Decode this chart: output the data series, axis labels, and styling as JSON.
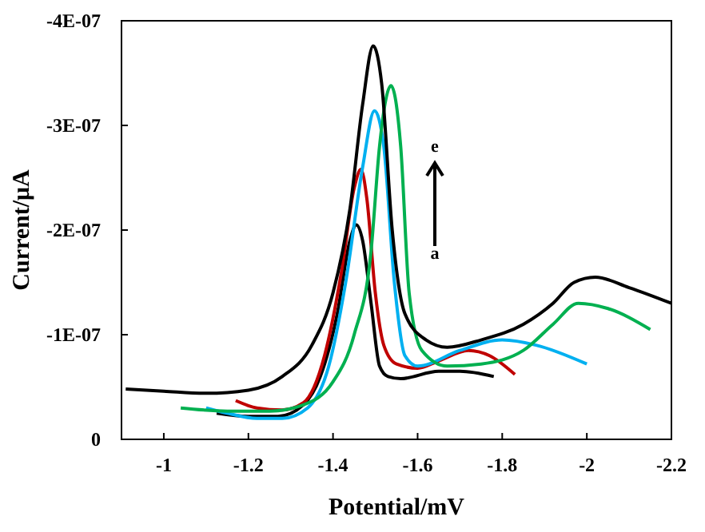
{
  "chart_data": {
    "type": "line",
    "xlabel": "Potential/mV",
    "ylabel": "Current/μA",
    "xlim": [
      -0.9,
      -2.2
    ],
    "xticks": [
      -1,
      -1.2,
      -1.4,
      -1.6,
      -1.8,
      -2,
      -2.2
    ],
    "ylim": [
      0,
      -4e-07
    ],
    "yticks": [
      0,
      {
        "value": -1e-07,
        "label": "-1E-07"
      },
      {
        "value": -2e-07,
        "label": "-2E-07"
      },
      {
        "value": -3e-07,
        "label": "-3E-07"
      },
      {
        "value": -4e-07,
        "label": "-4E-07"
      }
    ],
    "grid": false,
    "marker": "none",
    "line_style": "solid",
    "annotations": [
      "e",
      "a"
    ],
    "series": [
      {
        "color": "#000000",
        "x": [
          -1.125,
          -1.2,
          -1.27,
          -1.33,
          -1.37,
          -1.41,
          -1.44,
          -1.455,
          -1.47,
          -1.49,
          -1.51,
          -1.53,
          -1.56,
          -1.65,
          -1.7,
          -1.78
        ],
        "values": [
          -2.5e-08,
          -2.2e-08,
          -2.2e-08,
          -3.3e-08,
          -6e-08,
          -1.2e-07,
          -1.9e-07,
          -2.05e-07,
          -1.9e-07,
          -1.3e-07,
          -7e-08,
          -6e-08,
          -5.8e-08,
          -6.5e-08,
          -6.5e-08,
          -6e-08
        ]
      },
      {
        "color": "#c00000",
        "x": [
          -1.17,
          -1.22,
          -1.28,
          -1.33,
          -1.38,
          -1.42,
          -1.45,
          -1.466,
          -1.48,
          -1.5,
          -1.52,
          -1.55,
          -1.6,
          -1.65,
          -1.72,
          -1.77,
          -1.83
        ],
        "values": [
          -3.7e-08,
          -3e-08,
          -2.8e-08,
          -3.5e-08,
          -8e-08,
          -1.6e-07,
          -2.4e-07,
          -2.58e-07,
          -2.3e-07,
          -1.4e-07,
          -9e-08,
          -7.2e-08,
          -6.8e-08,
          -7.5e-08,
          -8.5e-08,
          -8e-08,
          -6.2e-08
        ]
      },
      {
        "color": "#00b0f0",
        "x": [
          -1.1,
          -1.15,
          -1.22,
          -1.28,
          -1.34,
          -1.39,
          -1.43,
          -1.47,
          -1.498,
          -1.52,
          -1.545,
          -1.57,
          -1.6,
          -1.7,
          -1.8,
          -1.88,
          -2.0
        ],
        "values": [
          -3e-08,
          -2.5e-08,
          -2e-08,
          -2e-08,
          -3e-08,
          -7e-08,
          -1.5e-07,
          -2.6e-07,
          -3.14e-07,
          -2.8e-07,
          -1.5e-07,
          -8e-08,
          -7e-08,
          -8.5e-08,
          -9.5e-08,
          -9e-08,
          -7.2e-08
        ]
      },
      {
        "color": "#00b050",
        "x": [
          -1.04,
          -1.15,
          -1.25,
          -1.33,
          -1.4,
          -1.45,
          -1.49,
          -1.51,
          -1.537,
          -1.56,
          -1.58,
          -1.61,
          -1.67,
          -1.75,
          -1.85,
          -1.92,
          -1.98,
          -2.05,
          -2.15
        ],
        "values": [
          -3e-08,
          -2.7e-08,
          -2.7e-08,
          -3.3e-08,
          -5.5e-08,
          -1e-07,
          -1.8e-07,
          -2.8e-07,
          -3.38e-07,
          -2.8e-07,
          -1.4e-07,
          -8.5e-08,
          -7e-08,
          -7.2e-08,
          -8.5e-08,
          -1.1e-07,
          -1.3e-07,
          -1.25e-07,
          -1.05e-07
        ]
      },
      {
        "color": "#000000",
        "x": [
          -0.91,
          -1.0,
          -1.1,
          -1.2,
          -1.28,
          -1.35,
          -1.4,
          -1.44,
          -1.47,
          -1.495,
          -1.515,
          -1.54,
          -1.57,
          -1.62,
          -1.67,
          -1.75,
          -1.85,
          -1.92,
          -1.97,
          -2.02,
          -2.1,
          -2.2
        ],
        "values": [
          -4.8e-08,
          -4.6e-08,
          -4.4e-08,
          -4.7e-08,
          -6e-08,
          -9e-08,
          -1.4e-07,
          -2.2e-07,
          -3.2e-07,
          -3.76e-07,
          -3.4e-07,
          -2e-07,
          -1.2e-07,
          -9.5e-08,
          -8.8e-08,
          -9.5e-08,
          -1.1e-07,
          -1.3e-07,
          -1.5e-07,
          -1.55e-07,
          -1.45e-07,
          -1.3e-07
        ]
      }
    ]
  }
}
